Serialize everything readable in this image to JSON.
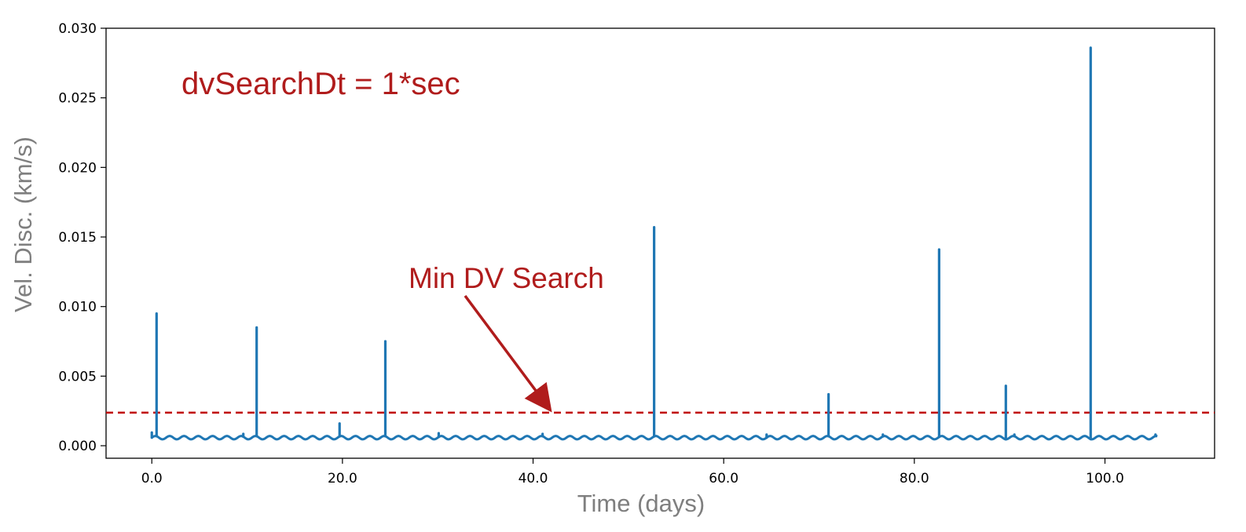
{
  "chart_data": {
    "type": "line",
    "title": "",
    "xlabel": "Time (days)",
    "ylabel": "Vel. Disc. (km/s)",
    "xlim": [
      -4.8,
      111.5
    ],
    "ylim": [
      -0.0009,
      0.03
    ],
    "grid": false,
    "legend": "none",
    "x_ticks": [
      0,
      20,
      40,
      60,
      80,
      100
    ],
    "x_tick_labels": [
      "0.0",
      "20.0",
      "40.0",
      "60.0",
      "80.0",
      "100.0"
    ],
    "y_ticks": [
      0.0,
      0.005,
      0.01,
      0.015,
      0.02,
      0.025,
      0.03
    ],
    "y_tick_labels": [
      "0.000",
      "0.005",
      "0.010",
      "0.015",
      "0.020",
      "0.025",
      "0.030"
    ],
    "series": [
      {
        "color": "#1f77b4",
        "baseline": {
          "x_start": 0.0,
          "x_end": 105.5,
          "mean": 0.00058,
          "amplitude": 0.00012,
          "period_days": 1.5
        },
        "spikes": [
          {
            "x": 0.0,
            "y": 0.00095
          },
          {
            "x": 0.5,
            "y": 0.0095
          },
          {
            "x": 9.6,
            "y": 0.00085
          },
          {
            "x": 11.0,
            "y": 0.0085
          },
          {
            "x": 19.7,
            "y": 0.0016
          },
          {
            "x": 24.5,
            "y": 0.0075
          },
          {
            "x": 30.1,
            "y": 0.0009
          },
          {
            "x": 41.0,
            "y": 0.00085
          },
          {
            "x": 52.7,
            "y": 0.0157
          },
          {
            "x": 64.5,
            "y": 0.0008
          },
          {
            "x": 71.0,
            "y": 0.0037
          },
          {
            "x": 76.7,
            "y": 0.0008
          },
          {
            "x": 82.6,
            "y": 0.0141
          },
          {
            "x": 89.6,
            "y": 0.0043
          },
          {
            "x": 90.5,
            "y": 0.0008
          },
          {
            "x": 98.5,
            "y": 0.0286
          },
          {
            "x": 105.3,
            "y": 0.0008
          }
        ]
      }
    ],
    "threshold_line": {
      "y": 0.00238,
      "color": "#c00000",
      "style": "dashed"
    },
    "annotations": {
      "dv_search": {
        "text": "dvSearchDt = 1*sec",
        "color": "#b01c1c"
      },
      "min_dv": {
        "text": "Min DV Search",
        "color": "#b01c1c",
        "arrow_to": {
          "x": 41.8,
          "y": 0.00238
        }
      }
    }
  }
}
